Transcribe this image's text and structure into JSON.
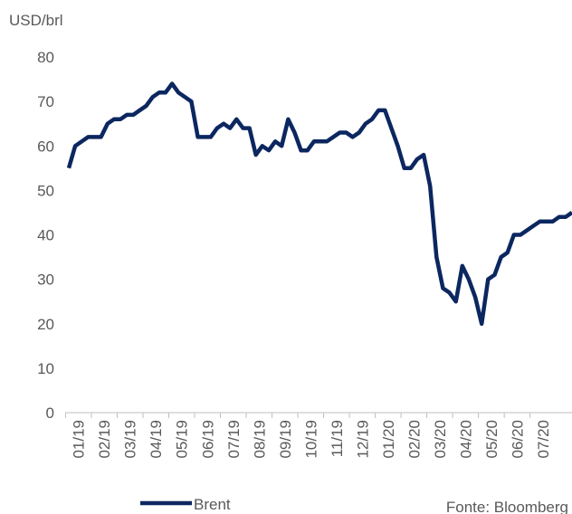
{
  "chart_data": {
    "type": "line",
    "y_label": "USD/brl",
    "source": "Fonte: Bloomberg",
    "categories": [
      "01/19",
      null,
      null,
      null,
      "02/19",
      null,
      null,
      null,
      "03/19",
      null,
      null,
      null,
      "04/19",
      null,
      null,
      null,
      "05/19",
      null,
      null,
      null,
      "06/19",
      null,
      null,
      null,
      "07/19",
      null,
      null,
      null,
      "08/19",
      null,
      null,
      null,
      "09/19",
      null,
      null,
      null,
      "10/19",
      null,
      null,
      null,
      "11/19",
      null,
      null,
      null,
      "12/19",
      null,
      null,
      null,
      "01/20",
      null,
      null,
      null,
      "02/20",
      null,
      null,
      null,
      "03/20",
      null,
      null,
      null,
      "04/20",
      null,
      null,
      null,
      "05/20",
      null,
      null,
      null,
      "06/20",
      null,
      null,
      null,
      "07/20",
      null,
      null,
      null,
      null,
      null,
      null
    ],
    "series": [
      {
        "name": "Brent",
        "color": "#0c2760",
        "values": [
          55,
          60,
          61,
          62,
          62,
          62,
          65,
          66,
          66,
          67,
          67,
          68,
          69,
          71,
          72,
          72,
          74,
          72,
          71,
          70,
          62,
          62,
          62,
          64,
          65,
          64,
          66,
          64,
          64,
          58,
          60,
          59,
          61,
          60,
          66,
          63,
          59,
          59,
          61,
          61,
          61,
          62,
          63,
          63,
          62,
          63,
          65,
          66,
          68,
          68,
          64,
          60,
          55,
          55,
          57,
          58,
          51,
          35,
          28,
          27,
          25,
          33,
          30,
          26,
          20,
          30,
          31,
          35,
          36,
          40,
          40,
          41,
          42,
          43,
          43,
          43,
          44,
          44,
          45
        ]
      }
    ],
    "ylim": [
      0,
      80
    ],
    "yticks": [
      0,
      10,
      20,
      30,
      40,
      50,
      60,
      70,
      80
    ]
  }
}
